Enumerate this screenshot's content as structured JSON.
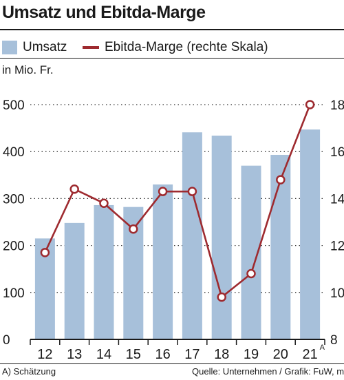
{
  "chart_data": {
    "type": "bar",
    "title": "Umsatz und Ebitda-Marge",
    "unit_label": "in Mio. Fr.",
    "categories": [
      "12",
      "13",
      "14",
      "15",
      "16",
      "17",
      "18",
      "19",
      "20",
      "21"
    ],
    "category_superscripts": [
      "",
      "",
      "",
      "",
      "",
      "",
      "",
      "",
      "",
      "A"
    ],
    "series": [
      {
        "name": "Umsatz",
        "type": "bar",
        "axis": "left",
        "values": [
          215,
          248,
          286,
          282,
          330,
          441,
          434,
          370,
          393,
          447
        ]
      },
      {
        "name": "Ebitda-Marge (rechte Skala)",
        "type": "line",
        "axis": "right",
        "values": [
          11.7,
          14.4,
          13.8,
          12.7,
          14.3,
          14.3,
          9.8,
          10.8,
          14.8,
          18.0
        ]
      }
    ],
    "y_left": {
      "range": [
        0,
        500
      ],
      "ticks": [
        0,
        100,
        200,
        300,
        400,
        500
      ]
    },
    "y_right": {
      "range": [
        8,
        18
      ],
      "ticks": [
        8,
        10,
        12,
        14,
        16,
        18
      ]
    },
    "grid": true,
    "legend_position": "top",
    "colors": {
      "bar": "#a7c0da",
      "line": "#9e2a2f",
      "grid": "#333333",
      "text": "#1a1a1a"
    },
    "footnote": "A) Schätzung",
    "source": "Quelle: Unternehmen / Grafik: FuW, mg"
  }
}
